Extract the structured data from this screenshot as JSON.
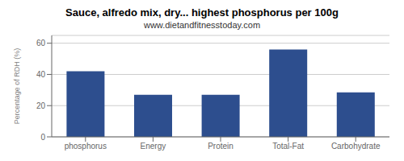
{
  "chart_data": {
    "type": "bar",
    "title": "Sauce, alfredo mix, dry... highest phosphorus per 100g",
    "subtitle": "www.dietandfitnesstoday.com",
    "categories": [
      "phosphorus",
      "Energy",
      "Protein",
      "Total-Fat",
      "Carbohydrate"
    ],
    "values": [
      42,
      27,
      27,
      56,
      28.5
    ],
    "color": "#2d4e8e",
    "ylabel": "Percentage of RDH (%)",
    "ylim": [
      0,
      65
    ],
    "yticks": [
      0,
      20,
      40,
      60
    ],
    "grid": true
  }
}
